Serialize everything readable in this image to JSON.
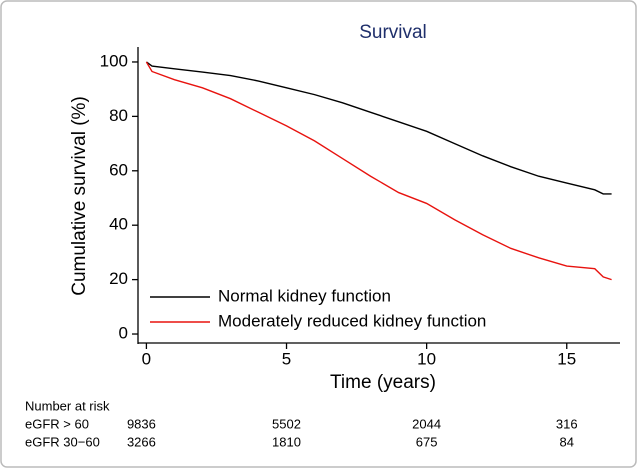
{
  "chart_data": {
    "type": "line",
    "title": "Survival",
    "x_label": "Time (years)",
    "y_label": "Cumulative survival (%)",
    "x": [
      0,
      0.2,
      1,
      2,
      3,
      4,
      5,
      6,
      7,
      8,
      9,
      10,
      11,
      12,
      13,
      14,
      15,
      16,
      16.3,
      16.6
    ],
    "series": [
      {
        "name": "Normal kidney function",
        "color": "#000000",
        "values": [
          100,
          98.5,
          97.5,
          96.3,
          95,
          93,
          90.5,
          88,
          85,
          81.5,
          78,
          74.5,
          70,
          65.5,
          61.5,
          58,
          55.5,
          53,
          51.5,
          51.5
        ]
      },
      {
        "name": "Moderately reduced kidney function",
        "color": "#e8130f",
        "values": [
          100,
          96.5,
          93.5,
          90.5,
          86.5,
          81.5,
          76.5,
          71,
          64.5,
          58,
          52,
          48,
          42,
          36.5,
          31.5,
          28,
          25,
          24,
          21,
          20
        ]
      }
    ],
    "xlim": [
      -0.3,
      16.9
    ],
    "xticks": [
      0,
      5,
      10,
      15
    ],
    "ylim": [
      -3.3,
      104.4
    ],
    "yticks": [
      0,
      20,
      40,
      60,
      80,
      100
    ],
    "legend": "lower left",
    "risk_table": {
      "title": "Number at risk",
      "rows": [
        {
          "label": "eGFR > 60",
          "values": [
            9836,
            5502,
            2044,
            316
          ]
        },
        {
          "label": "eGFR 30−60",
          "values": [
            3266,
            1810,
            675,
            84
          ]
        }
      ]
    }
  }
}
